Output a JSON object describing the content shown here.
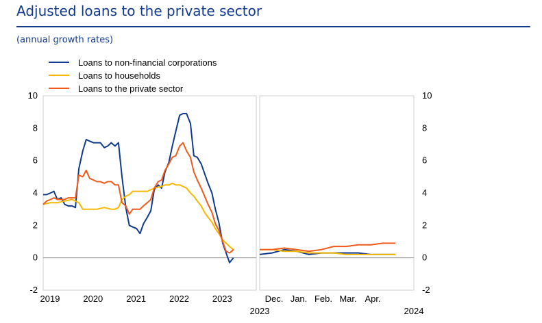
{
  "header": {
    "title": "Adjusted loans to the private sector",
    "subtitle": "(annual growth rates)"
  },
  "chart_data": {
    "type": "line",
    "title": "Adjusted loans to the private sector",
    "subtitle": "(annual growth rates)",
    "ylim": [
      -2,
      10
    ],
    "yticks": [
      "-2",
      "0",
      "2",
      "4",
      "6",
      "8",
      "10"
    ],
    "grid": false,
    "legend_position": "top-left",
    "panels": [
      {
        "name": "long-run",
        "xlim": [
          2019.0,
          2023.95
        ],
        "xticks": [
          {
            "value": 2019.0,
            "label": "2019"
          },
          {
            "value": 2020.0,
            "label": "2020"
          },
          {
            "value": 2021.0,
            "label": "2021"
          },
          {
            "value": 2022.0,
            "label": "2022"
          },
          {
            "value": 2023.0,
            "label": "2023"
          }
        ]
      },
      {
        "name": "recent-months",
        "xlim": [
          0,
          5
        ],
        "xticks": [
          {
            "value": 0.4,
            "label": "Dec."
          },
          {
            "value": 1.2,
            "label": "Jan."
          },
          {
            "value": 2.0,
            "label": "Feb."
          },
          {
            "value": 2.8,
            "label": "Mar."
          },
          {
            "value": 3.6,
            "label": "Apr."
          }
        ],
        "year_labels": [
          "2023",
          "2024"
        ]
      }
    ],
    "series": [
      {
        "name": "Loans to non-financial corporations",
        "color": "#103a8c",
        "panel_long": [
          [
            2019.0,
            3.9
          ],
          [
            2019.08,
            3.9
          ],
          [
            2019.17,
            4.0
          ],
          [
            2019.25,
            4.1
          ],
          [
            2019.33,
            3.6
          ],
          [
            2019.42,
            3.7
          ],
          [
            2019.5,
            3.3
          ],
          [
            2019.58,
            3.2
          ],
          [
            2019.67,
            3.2
          ],
          [
            2019.75,
            3.1
          ],
          [
            2019.83,
            5.5
          ],
          [
            2019.92,
            6.6
          ],
          [
            2020.0,
            7.3
          ],
          [
            2020.08,
            7.2
          ],
          [
            2020.17,
            7.1
          ],
          [
            2020.25,
            7.1
          ],
          [
            2020.33,
            7.1
          ],
          [
            2020.42,
            6.8
          ],
          [
            2020.5,
            6.9
          ],
          [
            2020.58,
            7.1
          ],
          [
            2020.67,
            6.9
          ],
          [
            2020.75,
            7.1
          ],
          [
            2020.83,
            5.0
          ],
          [
            2020.92,
            3.1
          ],
          [
            2021.0,
            2.0
          ],
          [
            2021.08,
            1.9
          ],
          [
            2021.17,
            1.8
          ],
          [
            2021.25,
            1.5
          ],
          [
            2021.33,
            2.1
          ],
          [
            2021.42,
            2.5
          ],
          [
            2021.5,
            2.9
          ],
          [
            2021.58,
            4.2
          ],
          [
            2021.67,
            4.5
          ],
          [
            2021.75,
            4.3
          ],
          [
            2021.83,
            5.3
          ],
          [
            2021.92,
            5.9
          ],
          [
            2022.0,
            6.9
          ],
          [
            2022.08,
            7.8
          ],
          [
            2022.17,
            8.8
          ],
          [
            2022.25,
            8.9
          ],
          [
            2022.33,
            8.9
          ],
          [
            2022.42,
            8.3
          ],
          [
            2022.5,
            6.3
          ],
          [
            2022.58,
            6.2
          ],
          [
            2022.67,
            5.8
          ],
          [
            2022.75,
            5.2
          ],
          [
            2022.83,
            4.6
          ],
          [
            2022.92,
            4.0
          ],
          [
            2023.0,
            3.0
          ],
          [
            2023.08,
            2.2
          ],
          [
            2023.17,
            0.9
          ],
          [
            2023.25,
            0.3
          ],
          [
            2023.33,
            -0.3
          ],
          [
            2023.42,
            0.0
          ]
        ],
        "panel_recent": [
          [
            0.0,
            0.2
          ],
          [
            0.4,
            0.3
          ],
          [
            0.8,
            0.5
          ],
          [
            1.2,
            0.4
          ],
          [
            1.6,
            0.2
          ],
          [
            2.0,
            0.3
          ],
          [
            2.4,
            0.3
          ],
          [
            2.8,
            0.3
          ],
          [
            3.2,
            0.3
          ],
          [
            3.6,
            0.2
          ],
          [
            4.0,
            0.2
          ],
          [
            4.4,
            0.2
          ]
        ]
      },
      {
        "name": "Loans to households",
        "color": "#f5b800",
        "panel_long": [
          [
            2019.0,
            3.3
          ],
          [
            2019.17,
            3.4
          ],
          [
            2019.33,
            3.4
          ],
          [
            2019.5,
            3.5
          ],
          [
            2019.67,
            3.6
          ],
          [
            2019.75,
            3.5
          ],
          [
            2019.83,
            3.4
          ],
          [
            2019.92,
            3.0
          ],
          [
            2020.08,
            3.0
          ],
          [
            2020.25,
            3.0
          ],
          [
            2020.42,
            3.1
          ],
          [
            2020.58,
            3.0
          ],
          [
            2020.67,
            3.0
          ],
          [
            2020.75,
            3.1
          ],
          [
            2020.83,
            3.6
          ],
          [
            2020.92,
            3.8
          ],
          [
            2021.0,
            3.9
          ],
          [
            2021.08,
            4.1
          ],
          [
            2021.25,
            4.1
          ],
          [
            2021.42,
            4.1
          ],
          [
            2021.58,
            4.3
          ],
          [
            2021.75,
            4.4
          ],
          [
            2021.83,
            4.5
          ],
          [
            2021.92,
            4.5
          ],
          [
            2022.0,
            4.6
          ],
          [
            2022.08,
            4.5
          ],
          [
            2022.17,
            4.5
          ],
          [
            2022.25,
            4.4
          ],
          [
            2022.33,
            4.3
          ],
          [
            2022.42,
            4.0
          ],
          [
            2022.5,
            3.8
          ],
          [
            2022.58,
            3.5
          ],
          [
            2022.67,
            3.2
          ],
          [
            2022.75,
            2.8
          ],
          [
            2022.83,
            2.5
          ],
          [
            2022.92,
            2.2
          ],
          [
            2023.0,
            1.8
          ],
          [
            2023.08,
            1.5
          ],
          [
            2023.17,
            1.1
          ],
          [
            2023.25,
            0.9
          ],
          [
            2023.33,
            0.7
          ],
          [
            2023.42,
            0.5
          ]
        ],
        "panel_recent": [
          [
            0.0,
            0.5
          ],
          [
            0.4,
            0.5
          ],
          [
            0.8,
            0.4
          ],
          [
            1.2,
            0.4
          ],
          [
            1.6,
            0.3
          ],
          [
            2.0,
            0.3
          ],
          [
            2.4,
            0.3
          ],
          [
            2.8,
            0.2
          ],
          [
            3.2,
            0.2
          ],
          [
            3.6,
            0.2
          ],
          [
            4.0,
            0.2
          ],
          [
            4.4,
            0.2
          ]
        ]
      },
      {
        "name": "Loans to the private sector",
        "color": "#f05a1a",
        "panel_long": [
          [
            2019.0,
            3.3
          ],
          [
            2019.08,
            3.5
          ],
          [
            2019.17,
            3.6
          ],
          [
            2019.25,
            3.7
          ],
          [
            2019.33,
            3.6
          ],
          [
            2019.42,
            3.6
          ],
          [
            2019.5,
            3.6
          ],
          [
            2019.58,
            3.7
          ],
          [
            2019.67,
            3.7
          ],
          [
            2019.75,
            3.7
          ],
          [
            2019.83,
            5.1
          ],
          [
            2019.92,
            5.0
          ],
          [
            2020.0,
            5.4
          ],
          [
            2020.08,
            4.9
          ],
          [
            2020.17,
            4.8
          ],
          [
            2020.25,
            4.7
          ],
          [
            2020.33,
            4.7
          ],
          [
            2020.42,
            4.6
          ],
          [
            2020.5,
            4.7
          ],
          [
            2020.58,
            4.7
          ],
          [
            2020.67,
            4.5
          ],
          [
            2020.75,
            4.5
          ],
          [
            2020.83,
            3.4
          ],
          [
            2020.92,
            3.2
          ],
          [
            2021.0,
            2.7
          ],
          [
            2021.08,
            3.0
          ],
          [
            2021.17,
            3.0
          ],
          [
            2021.25,
            3.0
          ],
          [
            2021.33,
            3.2
          ],
          [
            2021.42,
            3.4
          ],
          [
            2021.5,
            3.6
          ],
          [
            2021.58,
            4.3
          ],
          [
            2021.67,
            4.7
          ],
          [
            2021.75,
            4.8
          ],
          [
            2021.83,
            5.4
          ],
          [
            2021.92,
            5.8
          ],
          [
            2022.0,
            6.2
          ],
          [
            2022.08,
            6.3
          ],
          [
            2022.17,
            6.9
          ],
          [
            2022.25,
            7.1
          ],
          [
            2022.33,
            6.6
          ],
          [
            2022.42,
            6.2
          ],
          [
            2022.5,
            5.3
          ],
          [
            2022.58,
            4.8
          ],
          [
            2022.67,
            4.3
          ],
          [
            2022.75,
            3.8
          ],
          [
            2022.83,
            3.3
          ],
          [
            2022.92,
            2.8
          ],
          [
            2023.0,
            2.1
          ],
          [
            2023.08,
            1.7
          ],
          [
            2023.17,
            1.0
          ],
          [
            2023.25,
            0.4
          ],
          [
            2023.33,
            0.3
          ],
          [
            2023.42,
            0.5
          ]
        ],
        "panel_recent": [
          [
            0.0,
            0.5
          ],
          [
            0.4,
            0.5
          ],
          [
            0.8,
            0.6
          ],
          [
            1.2,
            0.5
          ],
          [
            1.6,
            0.4
          ],
          [
            2.0,
            0.5
          ],
          [
            2.4,
            0.7
          ],
          [
            2.8,
            0.7
          ],
          [
            3.2,
            0.8
          ],
          [
            3.6,
            0.8
          ],
          [
            4.0,
            0.9
          ],
          [
            4.4,
            0.9
          ]
        ]
      }
    ]
  }
}
